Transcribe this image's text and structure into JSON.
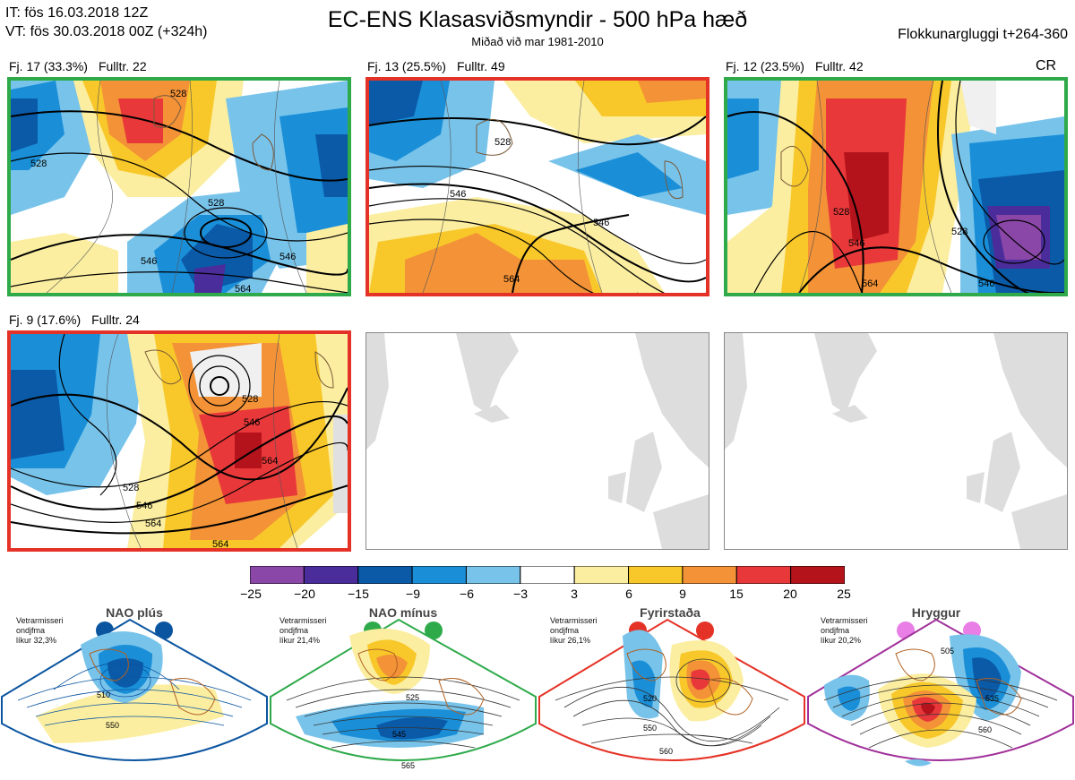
{
  "header": {
    "it": "IT: fös 16.03.2018 12Z",
    "vt": "VT: fös 30.03.2018 00Z  (+324h)",
    "title": "EC-ENS Klasasviðsmyndir - 500 hPa hæð",
    "subtitle": "Miðað við mar 1981-2010",
    "window": "Flokkunargluggi t+264-360",
    "cr": "CR"
  },
  "panels": [
    {
      "count": "Fj. 17 (33.3%)",
      "rep": "Fulltr. 22",
      "border": "#2eaa4a",
      "contours": [
        "528",
        "528",
        "528",
        "546",
        "546",
        "564"
      ]
    },
    {
      "count": "Fj. 13 (25.5%)",
      "rep": "Fulltr. 49",
      "border": "#e53226",
      "contours": [
        "528",
        "546",
        "546",
        "564"
      ]
    },
    {
      "count": "Fj. 12 (23.5%)",
      "rep": "Fulltr. 42",
      "border": "#2eaa4a",
      "contours": [
        "528",
        "546",
        "564",
        "528",
        "546"
      ]
    },
    {
      "count": "Fj. 9 (17.6%)",
      "rep": "Fulltr. 24",
      "border": "#e53226",
      "contours": [
        "528",
        "546",
        "564",
        "564",
        "546",
        "564",
        "528"
      ]
    }
  ],
  "colorbar": {
    "labels": [
      "−25",
      "−20",
      "−15",
      "−9",
      "−6",
      "−3",
      "3",
      "6",
      "9",
      "15",
      "20",
      "25"
    ],
    "colors": [
      "#8a47a8",
      "#4a2d9a",
      "#0b5aa8",
      "#1a8fd8",
      "#78c3ea",
      "#ffffff",
      "#fbeea0",
      "#f8c82a",
      "#f39237",
      "#e9383a",
      "#b5131c"
    ]
  },
  "regimes": [
    {
      "title": "NAO plús",
      "line1": "Vetrarmisseri",
      "line2": "ondjfma",
      "line3": "líkur 32,3%",
      "color": "#0b55a0",
      "contours": [
        "510",
        "550"
      ]
    },
    {
      "title": "NAO mínus",
      "line1": "Vetrarmisseri",
      "line2": "ondjfma",
      "line3": "líkur 21,4%",
      "color": "#2eaa4a",
      "contours": [
        "525",
        "545",
        "565"
      ]
    },
    {
      "title": "Fyrirstaða",
      "line1": "Vetrarmisseri",
      "line2": "ondjfma",
      "line3": "líkur 26,1%",
      "color": "#e53226",
      "contours": [
        "520",
        "550",
        "560"
      ]
    },
    {
      "title": "Hryggur",
      "line1": "Vetrarmisseri",
      "line2": "ondjfma",
      "line3": "líkur 20,2%",
      "color": "#a0309a",
      "contours": [
        "505",
        "535",
        "560"
      ]
    }
  ]
}
